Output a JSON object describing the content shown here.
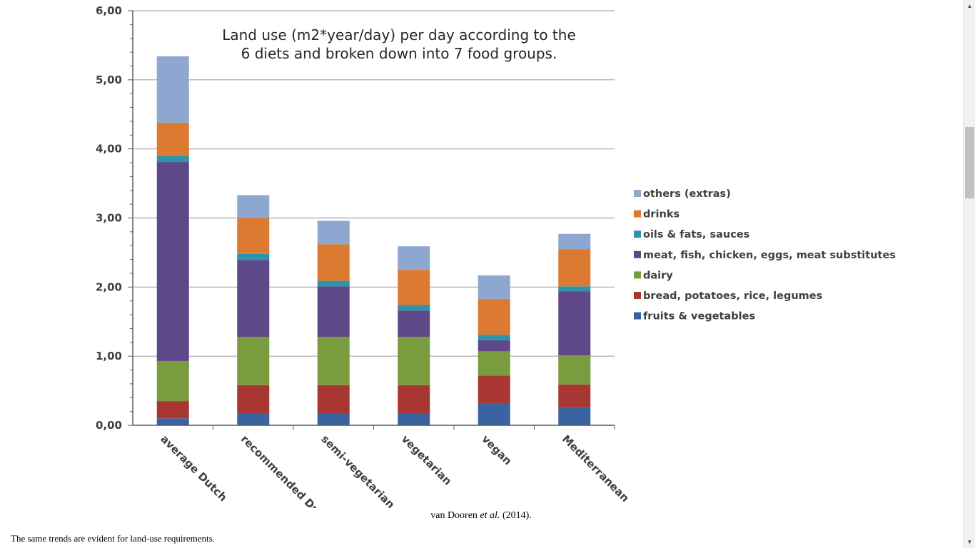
{
  "chart_data": {
    "type": "bar",
    "stacked": true,
    "title_lines": [
      "Land use (m2*year/day) per day according to the",
      "6 diets and broken down into 7 food groups."
    ],
    "categories": [
      "average Dutch",
      "recommended Dutch",
      "semi-vegetarian",
      "vegetarian",
      "vegan",
      "Mediterranean"
    ],
    "ylim": [
      0,
      6
    ],
    "yticks": [
      "0,00",
      "1,00",
      "2,00",
      "3,00",
      "4,00",
      "5,00",
      "6,00"
    ],
    "grid": true,
    "legend_position": "right",
    "series": [
      {
        "name": "fruits & vegetables",
        "color": "#3a64a1",
        "values": [
          0.1,
          0.17,
          0.17,
          0.17,
          0.32,
          0.26
        ]
      },
      {
        "name": "bread, potatoes, rice, legumes",
        "color": "#a83632",
        "values": [
          0.25,
          0.41,
          0.41,
          0.41,
          0.4,
          0.33
        ]
      },
      {
        "name": "dairy",
        "color": "#799c3e",
        "values": [
          0.58,
          0.7,
          0.7,
          0.7,
          0.35,
          0.42
        ]
      },
      {
        "name": "meat, fish, chicken, eggs, meat substitutes",
        "color": "#5e4887",
        "values": [
          2.88,
          1.11,
          0.73,
          0.38,
          0.16,
          0.93
        ]
      },
      {
        "name": "oils & fats, sauces",
        "color": "#2c94ad",
        "values": [
          0.09,
          0.09,
          0.08,
          0.08,
          0.08,
          0.07
        ]
      },
      {
        "name": "drinks",
        "color": "#dd7a31",
        "values": [
          0.48,
          0.52,
          0.53,
          0.51,
          0.52,
          0.54
        ]
      },
      {
        "name": "others (extras)",
        "color": "#8ea7d1",
        "values": [
          0.96,
          0.33,
          0.34,
          0.34,
          0.34,
          0.22
        ]
      }
    ]
  },
  "caption": {
    "author": "van Dooren",
    "etal": "et al.",
    "year": "(2014)."
  },
  "body_text": "The same trends are evident for land-use requirements.",
  "scrollbar": {
    "up_icon": "▲",
    "down_icon": "▼"
  }
}
